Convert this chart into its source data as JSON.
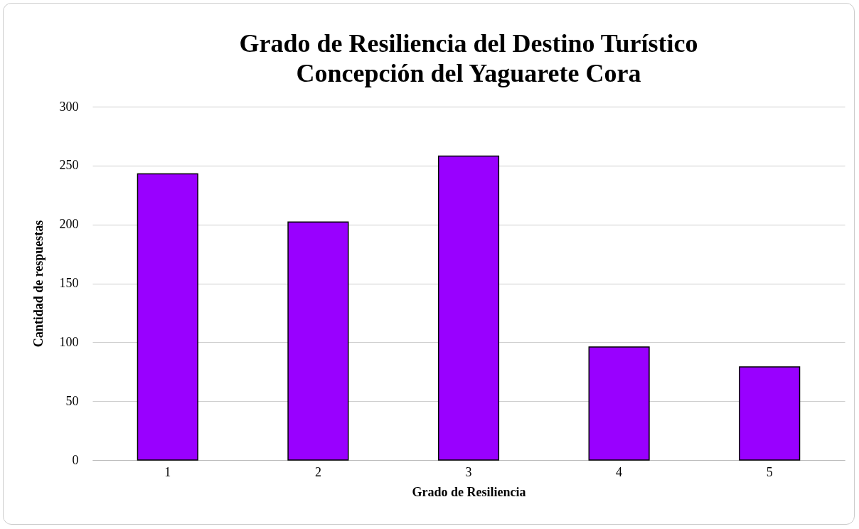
{
  "chart_data": {
    "type": "bar",
    "title": "Grado de Resiliencia del Destino Turístico Concepción del Yaguarete Cora",
    "xlabel": "Grado de Resiliencia",
    "ylabel": "Cantidad de respuestas",
    "categories": [
      "1",
      "2",
      "3",
      "4",
      "5"
    ],
    "values": [
      243,
      202,
      258,
      96,
      79
    ],
    "color": "#9900ff",
    "ylim": [
      0,
      300
    ],
    "yticks": [
      0,
      50,
      100,
      150,
      200,
      250,
      300
    ],
    "grid": "y"
  }
}
